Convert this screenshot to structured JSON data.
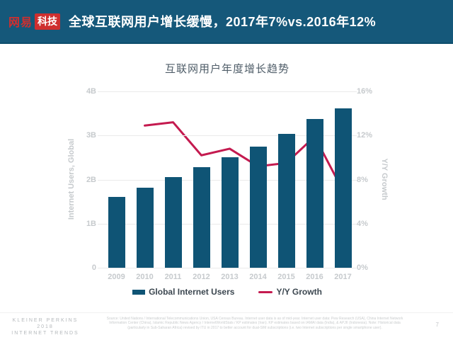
{
  "colors": {
    "header_bg": "#15587a",
    "bar": "#0f5475",
    "line": "#c41a4f",
    "logo_red": "#cf2f2f",
    "grid": "#eaeaea",
    "tick_text": "#c6cacd"
  },
  "header": {
    "logo_primary": "网易",
    "logo_badge": "科技",
    "title": "全球互联网用户增长缓慢，2017年7%vs.2016年12%"
  },
  "chart_data": {
    "type": "bar",
    "title": "互联网用户年度增长趋势",
    "categories": [
      "2009",
      "2010",
      "2011",
      "2012",
      "2013",
      "2014",
      "2015",
      "2016",
      "2017"
    ],
    "series": [
      {
        "name": "Global Internet Users",
        "type": "bar",
        "axis": "left",
        "unit": "billions",
        "values": [
          1.6,
          1.82,
          2.05,
          2.28,
          2.51,
          2.75,
          3.03,
          3.38,
          3.62
        ]
      },
      {
        "name": "Y/Y Growth",
        "type": "line",
        "axis": "right",
        "unit": "percent",
        "values": [
          null,
          12.9,
          13.2,
          10.2,
          10.8,
          9.2,
          9.5,
          11.9,
          7.0
        ]
      }
    ],
    "left_axis": {
      "title": "Internet Users, Global",
      "ticks": [
        "0",
        "1B",
        "2B",
        "3B",
        "4B"
      ],
      "range": [
        0,
        4
      ]
    },
    "right_axis": {
      "title": "Y/Y Growth",
      "ticks": [
        "0%",
        "4%",
        "8%",
        "12%",
        "16%"
      ],
      "range": [
        0,
        16
      ]
    },
    "grid": true,
    "legend_position": "bottom"
  },
  "footer": {
    "brand_line1": "KLEINER PERKINS",
    "brand_line2": "2018",
    "brand_line3": "INTERNET TRENDS",
    "source": "Source: United Nations / International Telecommunications Union, USA Census Bureau. Internet user data is as of mid-year. Internet user data: Pew Research (USA), China Internet Network Information Center (China), Islamic Republic News Agency / InternetWorldStats / KP estimates (Iran). KP estimates based on IAMAI data (India), & APJII (Indonesia). Note: Historical data (particularly in Sub-Saharan Africa) revised by ITU in 2017 to better account for dual-SIM subscriptions (i.e. two Internet subscriptions per single smartphone user).",
    "page": "7"
  }
}
